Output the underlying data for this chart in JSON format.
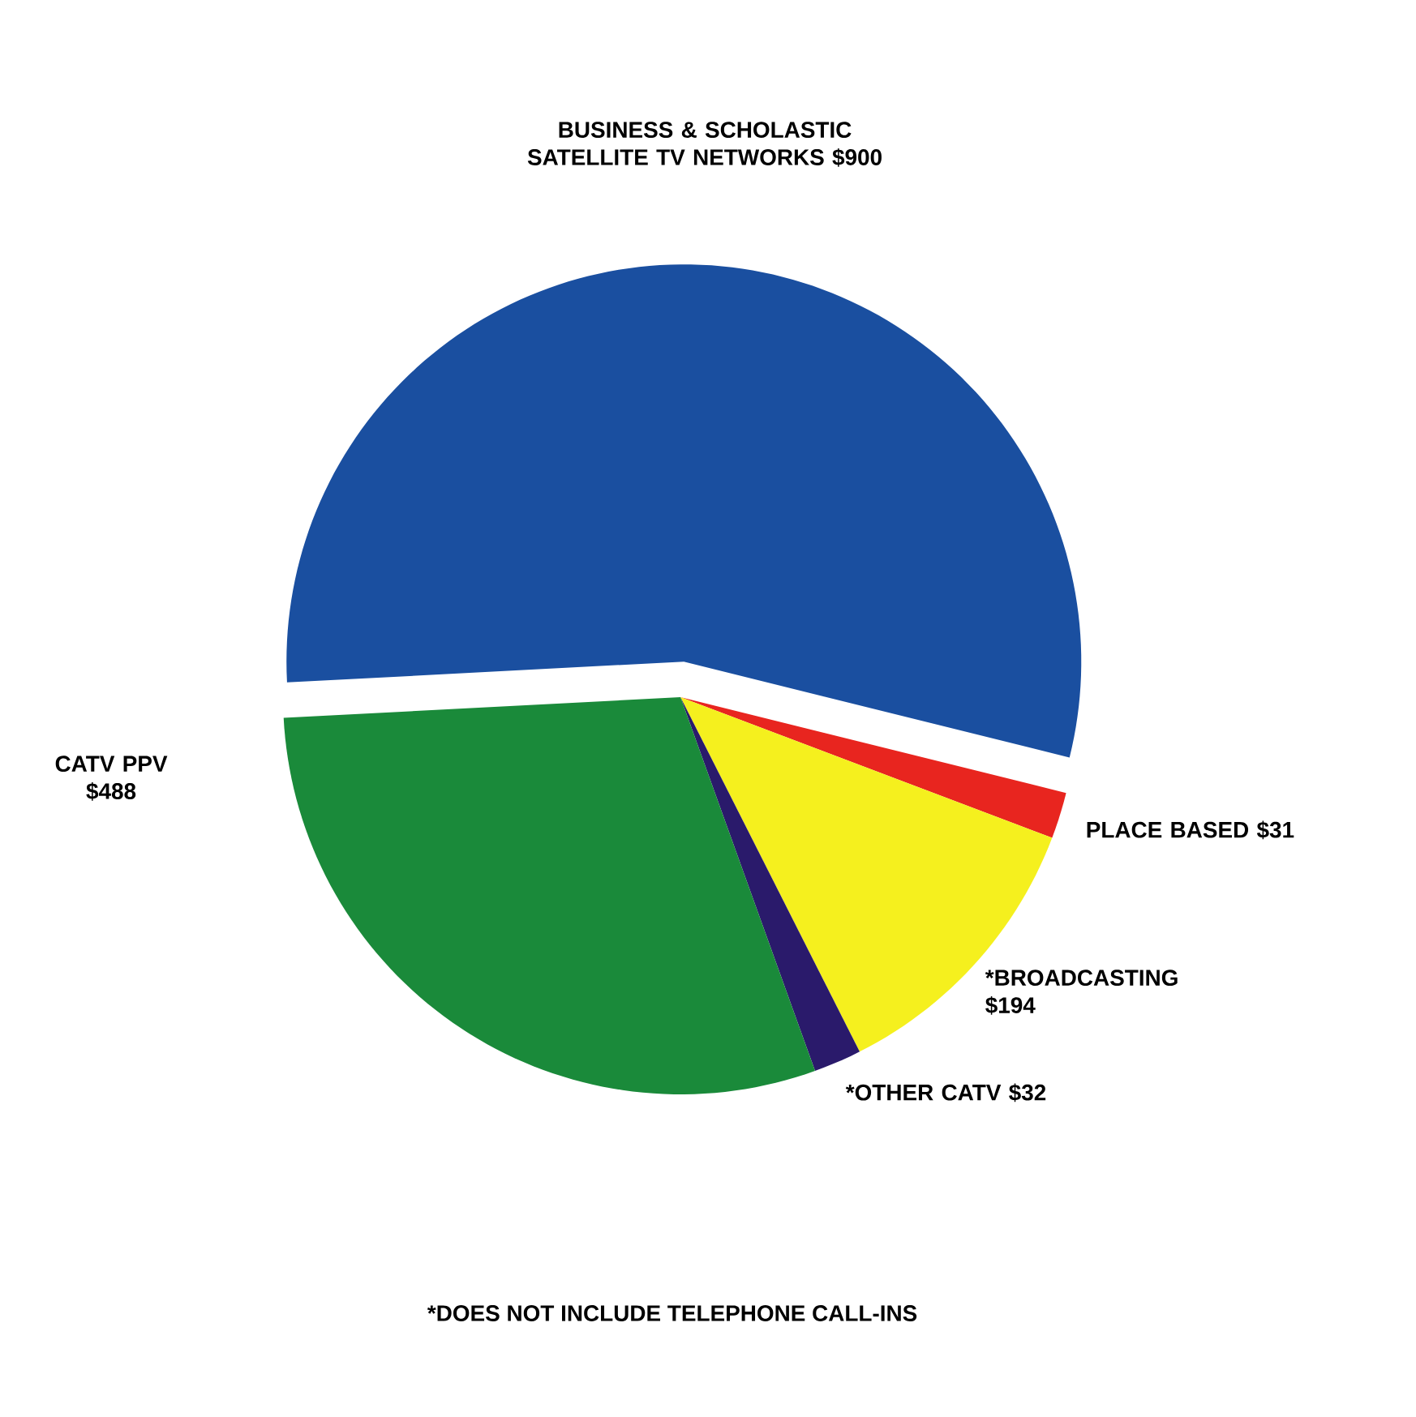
{
  "chart_data": {
    "type": "pie",
    "categories": [
      "BUSINESS & SCHOLASTIC SATELLITE TV NETWORKS",
      "PLACE BASED",
      "*BROADCASTING",
      "*OTHER CATV",
      "CATV  PPV"
    ],
    "values": [
      900,
      31,
      194,
      32,
      488
    ],
    "colors": [
      "#1a4fa0",
      "#e8251f",
      "#f5f01e",
      "#2a1a6b",
      "#1a8a3a"
    ],
    "value_labels": [
      "$900",
      "$31",
      "$194",
      "$32",
      "$488"
    ],
    "annotations": [
      "*DOES NOT INCLUDE TELEPHONE CALL-INS"
    ]
  }
}
